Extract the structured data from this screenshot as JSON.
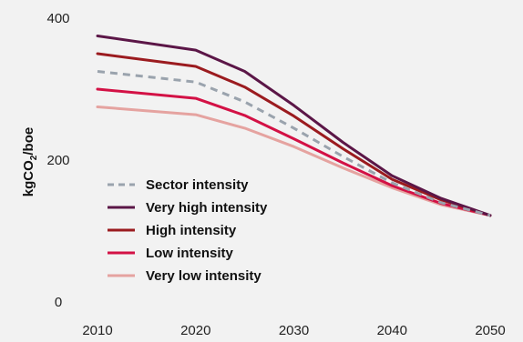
{
  "chart_data": {
    "type": "line",
    "title": "",
    "xlabel": "",
    "ylabel": "kgCO₂/boe",
    "ylabel_main": "kgCO",
    "ylabel_sub": "2",
    "ylabel_tail": "/boe",
    "xlim": [
      2010,
      2050
    ],
    "ylim": [
      0,
      400
    ],
    "x_ticks": [
      "2010",
      "2020",
      "2030",
      "2040",
      "2050"
    ],
    "y_ticks": [
      "0",
      "200",
      "400"
    ],
    "grid": false,
    "legend_position": "left-center",
    "series": [
      {
        "name": "Sector intensity",
        "color": "#9aa3ad",
        "dashed": true,
        "x": [
          2010,
          2020,
          2025,
          2030,
          2035,
          2040,
          2045,
          2050
        ],
        "y": [
          325,
          310,
          282,
          245,
          205,
          168,
          140,
          122
        ]
      },
      {
        "name": "Very high intensity",
        "color": "#5b1647",
        "dashed": false,
        "x": [
          2010,
          2020,
          2025,
          2030,
          2035,
          2040,
          2045,
          2050
        ],
        "y": [
          375,
          355,
          325,
          277,
          225,
          178,
          146,
          122
        ]
      },
      {
        "name": "High intensity",
        "color": "#9b1b1f",
        "dashed": false,
        "x": [
          2010,
          2020,
          2025,
          2030,
          2035,
          2040,
          2045,
          2050
        ],
        "y": [
          350,
          332,
          303,
          262,
          216,
          173,
          144,
          122
        ]
      },
      {
        "name": "Low intensity",
        "color": "#d31145",
        "dashed": false,
        "x": [
          2010,
          2020,
          2025,
          2030,
          2035,
          2040,
          2045,
          2050
        ],
        "y": [
          300,
          287,
          263,
          230,
          196,
          164,
          139,
          122
        ]
      },
      {
        "name": "Very low intensity",
        "color": "#e5a3a0",
        "dashed": false,
        "x": [
          2010,
          2020,
          2025,
          2030,
          2035,
          2040,
          2045,
          2050
        ],
        "y": [
          275,
          264,
          245,
          219,
          189,
          161,
          137,
          122
        ]
      }
    ]
  }
}
